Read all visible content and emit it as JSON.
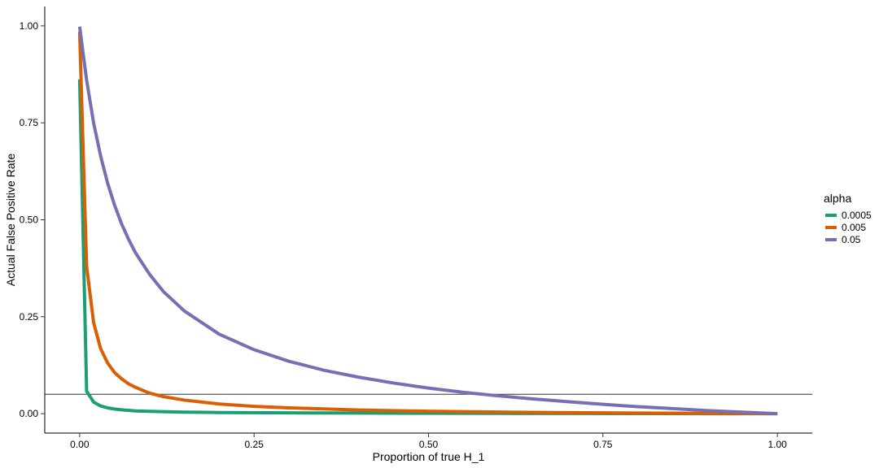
{
  "chart_data": {
    "type": "line",
    "title": "",
    "xlabel": "Proportion of true H_1",
    "ylabel": "Actual False Positive Rate",
    "xlim": [
      -0.05,
      1.05
    ],
    "ylim": [
      -0.05,
      1.05
    ],
    "x_ticks": [
      0,
      0.25,
      0.5,
      0.75,
      1
    ],
    "x_tick_labels": [
      "0.00",
      "0.25",
      "0.50",
      "0.75",
      "1.00"
    ],
    "y_ticks": [
      0,
      0.25,
      0.5,
      0.75,
      1
    ],
    "y_tick_labels": [
      "0.00",
      "0.25",
      "0.50",
      "0.75",
      "1.00"
    ],
    "hline": 0.05,
    "grid": false,
    "legend": {
      "title": "alpha",
      "position": "right"
    },
    "series": [
      {
        "name": "0.0005",
        "color": "#1b9e77",
        "x": [
          0,
          0.01,
          0.02,
          0.03,
          0.04,
          0.05,
          0.06,
          0.08,
          0.1,
          0.15,
          0.2,
          0.3,
          0.4,
          0.5,
          0.6,
          0.7,
          0.8,
          0.9,
          1
        ],
        "y": [
          0.862,
          0.058,
          0.03,
          0.02,
          0.015,
          0.012,
          0.01,
          0.007,
          0.006,
          0.004,
          0.003,
          0.002,
          0.0015,
          0.001,
          0.0007,
          0.0005,
          0.0003,
          0.0001,
          0
        ]
      },
      {
        "name": "0.005",
        "color": "#d95f02",
        "x": [
          0,
          0.01,
          0.02,
          0.03,
          0.04,
          0.05,
          0.06,
          0.07,
          0.08,
          0.1,
          0.12,
          0.15,
          0.2,
          0.25,
          0.3,
          0.4,
          0.5,
          0.6,
          0.7,
          0.8,
          0.9,
          1
        ],
        "y": [
          0.985,
          0.38,
          0.235,
          0.168,
          0.131,
          0.106,
          0.09,
          0.077,
          0.068,
          0.053,
          0.044,
          0.035,
          0.025,
          0.019,
          0.015,
          0.0095,
          0.0063,
          0.0042,
          0.0027,
          0.0016,
          0.0007,
          0
        ]
      },
      {
        "name": "0.05",
        "color": "#7570b3",
        "x": [
          0,
          0.01,
          0.02,
          0.03,
          0.04,
          0.05,
          0.06,
          0.07,
          0.08,
          0.1,
          0.12,
          0.15,
          0.2,
          0.25,
          0.3,
          0.35,
          0.4,
          0.45,
          0.5,
          0.55,
          0.6,
          0.65,
          0.7,
          0.75,
          0.8,
          0.85,
          0.9,
          0.95,
          1
        ],
        "y": [
          0.998,
          0.86,
          0.75,
          0.665,
          0.595,
          0.538,
          0.49,
          0.45,
          0.415,
          0.36,
          0.315,
          0.265,
          0.205,
          0.165,
          0.135,
          0.112,
          0.094,
          0.079,
          0.066,
          0.055,
          0.046,
          0.038,
          0.031,
          0.024,
          0.018,
          0.013,
          0.008,
          0.004,
          0
        ]
      }
    ]
  }
}
